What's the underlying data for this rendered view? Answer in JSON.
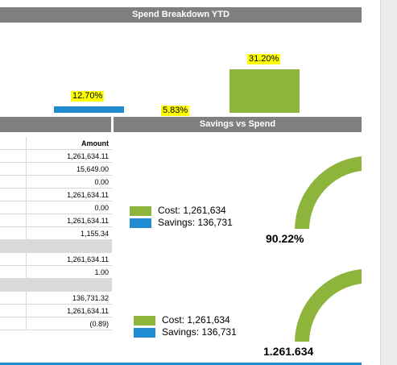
{
  "spend_header": "Spend Breakdown YTD",
  "spend_bars": [
    {
      "label": "12.70%",
      "color": "#1f8bd0"
    },
    {
      "label": "5.83%",
      "color": "#8db53c"
    },
    {
      "label": "31.20%",
      "color": "#8db53c"
    }
  ],
  "savings_header": "Savings vs Spend",
  "table": {
    "header": "Amount",
    "rows": [
      {
        "value": "1,261,634.11"
      },
      {
        "value": "15,649.00"
      },
      {
        "value": "0.00"
      },
      {
        "value": "1,261,634.11"
      },
      {
        "value": "0.00"
      },
      {
        "value": "1,261,634.11"
      },
      {
        "value": "1,155.34"
      },
      {
        "value": "",
        "gray": true
      },
      {
        "value": "1,261,634.11"
      },
      {
        "value": "1.00"
      },
      {
        "value": "",
        "gray": true
      },
      {
        "value": "136,731.32"
      },
      {
        "value": "1,261,634.11"
      },
      {
        "value": "(0.89)"
      }
    ]
  },
  "gauge1": {
    "cost": "Cost: 1,261,634",
    "savings": "Savings: 136,731",
    "value": "90.22%"
  },
  "gauge2": {
    "cost": "Cost: 1,261,634",
    "savings": "Savings: 136,731",
    "value": "1.261.634"
  },
  "colors": {
    "accent_blue": "#1f8bd0",
    "accent_green": "#8db53c",
    "header_gray": "#7f7f7f",
    "highlight": "#ffff00"
  }
}
